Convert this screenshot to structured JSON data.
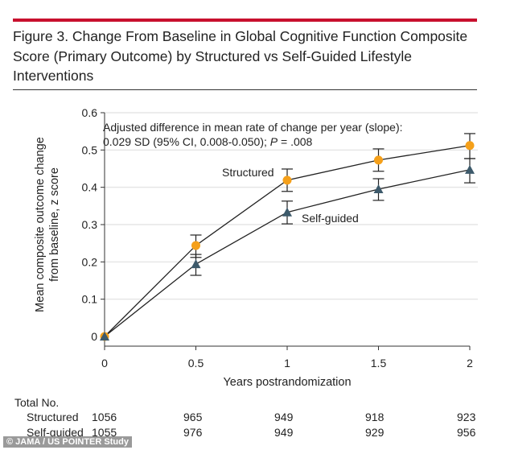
{
  "title": "Figure 3. Change From Baseline in Global Cognitive Function Composite Score (Primary Outcome) by Structured vs Self-Guided Lifestyle Interventions",
  "chart_data": {
    "type": "line",
    "xlabel": "Years postrandomization",
    "ylabel_line1": "Mean composite outcome change",
    "ylabel_line2": "from baseline, z score",
    "xlim": [
      0,
      2
    ],
    "ylim": [
      0,
      0.6
    ],
    "x_ticks": [
      "0",
      "0.5",
      "1",
      "1.5",
      "2"
    ],
    "y_ticks": [
      "0",
      "0.1",
      "0.2",
      "0.3",
      "0.4",
      "0.5",
      "0.6"
    ],
    "grid": "horizontal",
    "annotation_line1": "Adjusted difference in mean rate of change per year (slope):",
    "annotation_line2": "0.029 SD (95% CI, 0.008-0.050); ",
    "annotation_p": "P",
    "annotation_pval": " = .008",
    "x": [
      0,
      0.5,
      1,
      1.5,
      2
    ],
    "series": [
      {
        "name": "Structured",
        "color": "#f5a01a",
        "marker": "circle",
        "values": [
          0,
          0.244,
          0.419,
          0.473,
          0.512
        ],
        "lower": [
          0,
          0.212,
          0.389,
          0.443,
          0.477
        ],
        "upper": [
          0,
          0.272,
          0.449,
          0.503,
          0.544
        ]
      },
      {
        "name": "Self-guided",
        "color": "#3d5a6b",
        "marker": "triangle",
        "values": [
          0,
          0.194,
          0.333,
          0.395,
          0.447
        ],
        "lower": [
          0,
          0.164,
          0.302,
          0.365,
          0.412
        ],
        "upper": [
          0,
          0.22,
          0.363,
          0.423,
          0.477
        ]
      }
    ]
  },
  "table": {
    "header": "Total No.",
    "rows": [
      {
        "label": "Structured",
        "values": [
          "1056",
          "965",
          "949",
          "918",
          "923"
        ]
      },
      {
        "label": "Self-guided",
        "values": [
          "1055",
          "976",
          "949",
          "929",
          "956"
        ]
      }
    ]
  },
  "credit": "© JAMA / US POINTER Study"
}
